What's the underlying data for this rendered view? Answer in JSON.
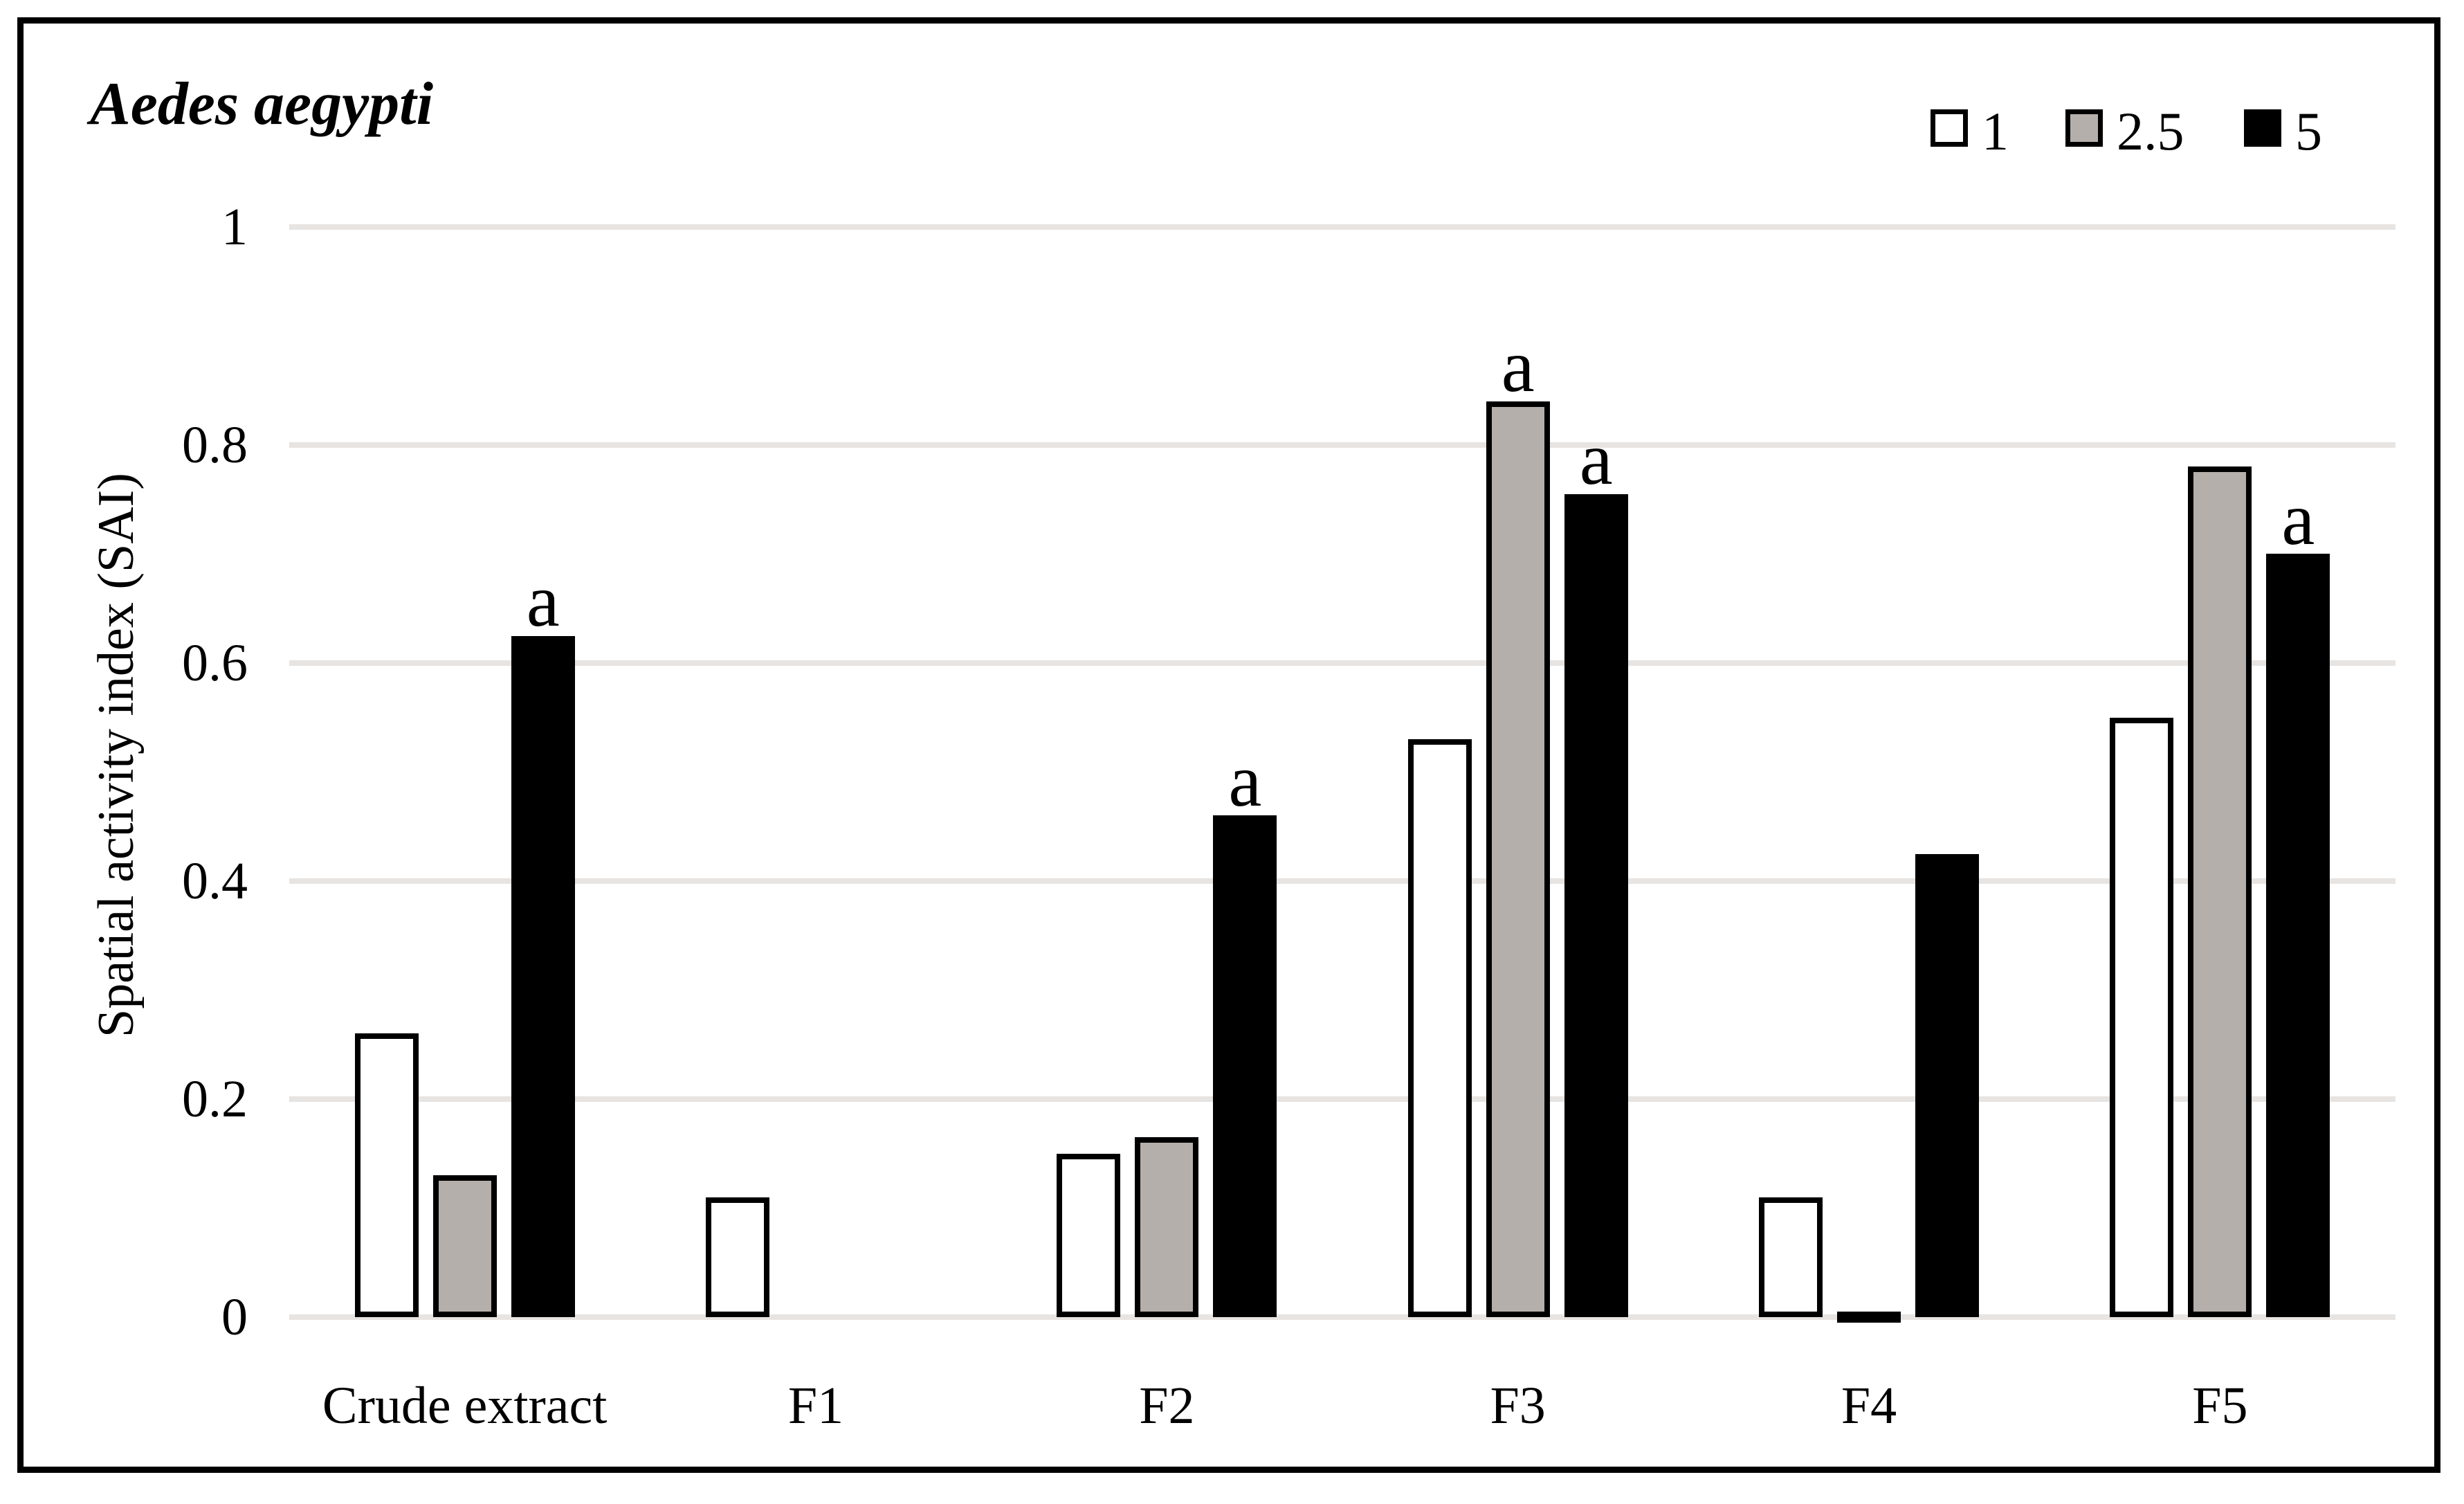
{
  "figure": {
    "title": "Aedes aegypti",
    "ylabel": "Spatial activity index (SAI)"
  },
  "legend": [
    {
      "label": "1",
      "fill": "#ffffff",
      "border": "#000000"
    },
    {
      "label": "2.5",
      "fill": "#b5afac",
      "border": "#000000"
    },
    {
      "label": "5",
      "fill": "#000000",
      "border": "#000000"
    }
  ],
  "chart_data": {
    "type": "bar",
    "title": "Aedes aegypti",
    "xlabel": "",
    "ylabel": "Spatial activity index (SAI)",
    "categories": [
      "Crude extract",
      "F1",
      "F2",
      "F3",
      "F4",
      "F5"
    ],
    "series": [
      {
        "name": "1",
        "fill": "#ffffff",
        "outlined": true,
        "values": [
          0.26,
          0.11,
          0.15,
          0.53,
          0.11,
          0.55
        ]
      },
      {
        "name": "2.5",
        "fill": "#b5afac",
        "outlined": true,
        "values": [
          0.13,
          null,
          0.165,
          0.84,
          0.005,
          0.78
        ]
      },
      {
        "name": "5",
        "fill": "#000000",
        "outlined": false,
        "values": [
          0.625,
          null,
          0.46,
          0.755,
          0.425,
          0.7
        ]
      }
    ],
    "ylim": [
      0,
      1
    ],
    "yticks": [
      0,
      0.2,
      0.4,
      0.6,
      0.8,
      1
    ],
    "ytick_labels": [
      "0",
      "0.2",
      "0.4",
      "0.6",
      "0.8",
      "1"
    ],
    "grid": true,
    "legend_position": "top-right",
    "annotations": [
      {
        "category": "Crude extract",
        "series": "5",
        "text": "a"
      },
      {
        "category": "F2",
        "series": "5",
        "text": "a"
      },
      {
        "category": "F3",
        "series": "2.5",
        "text": "a"
      },
      {
        "category": "F3",
        "series": "5",
        "text": "a"
      },
      {
        "category": "F5",
        "series": "5",
        "text": "a"
      }
    ]
  }
}
